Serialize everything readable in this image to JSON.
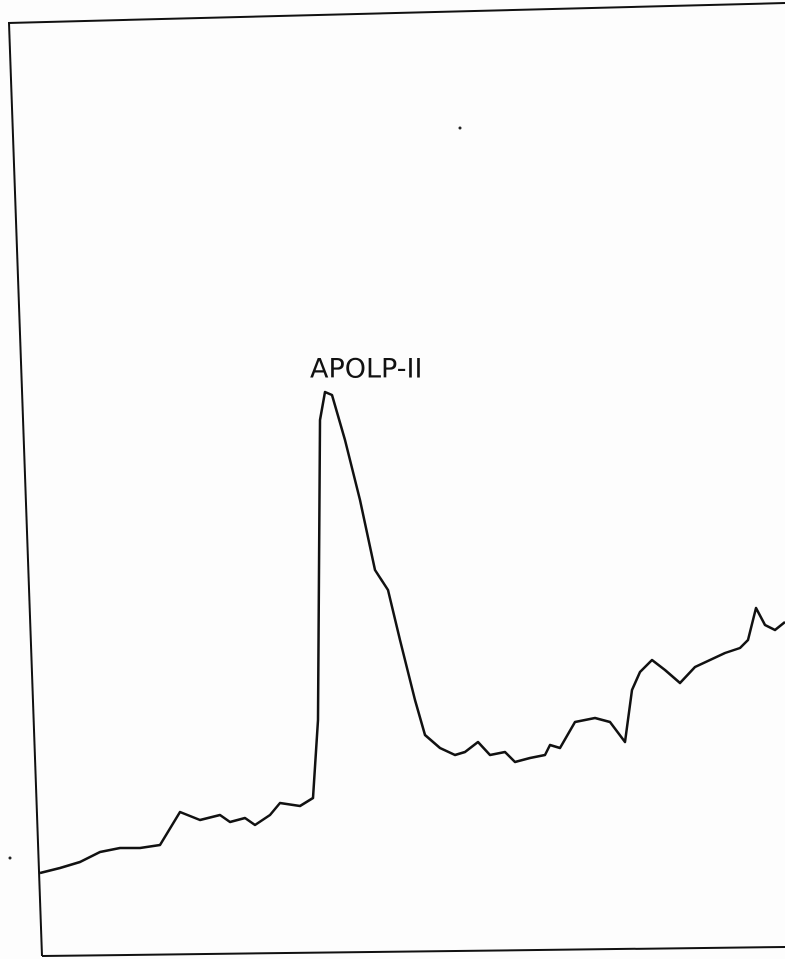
{
  "annotation": "APOLP-II"
}
